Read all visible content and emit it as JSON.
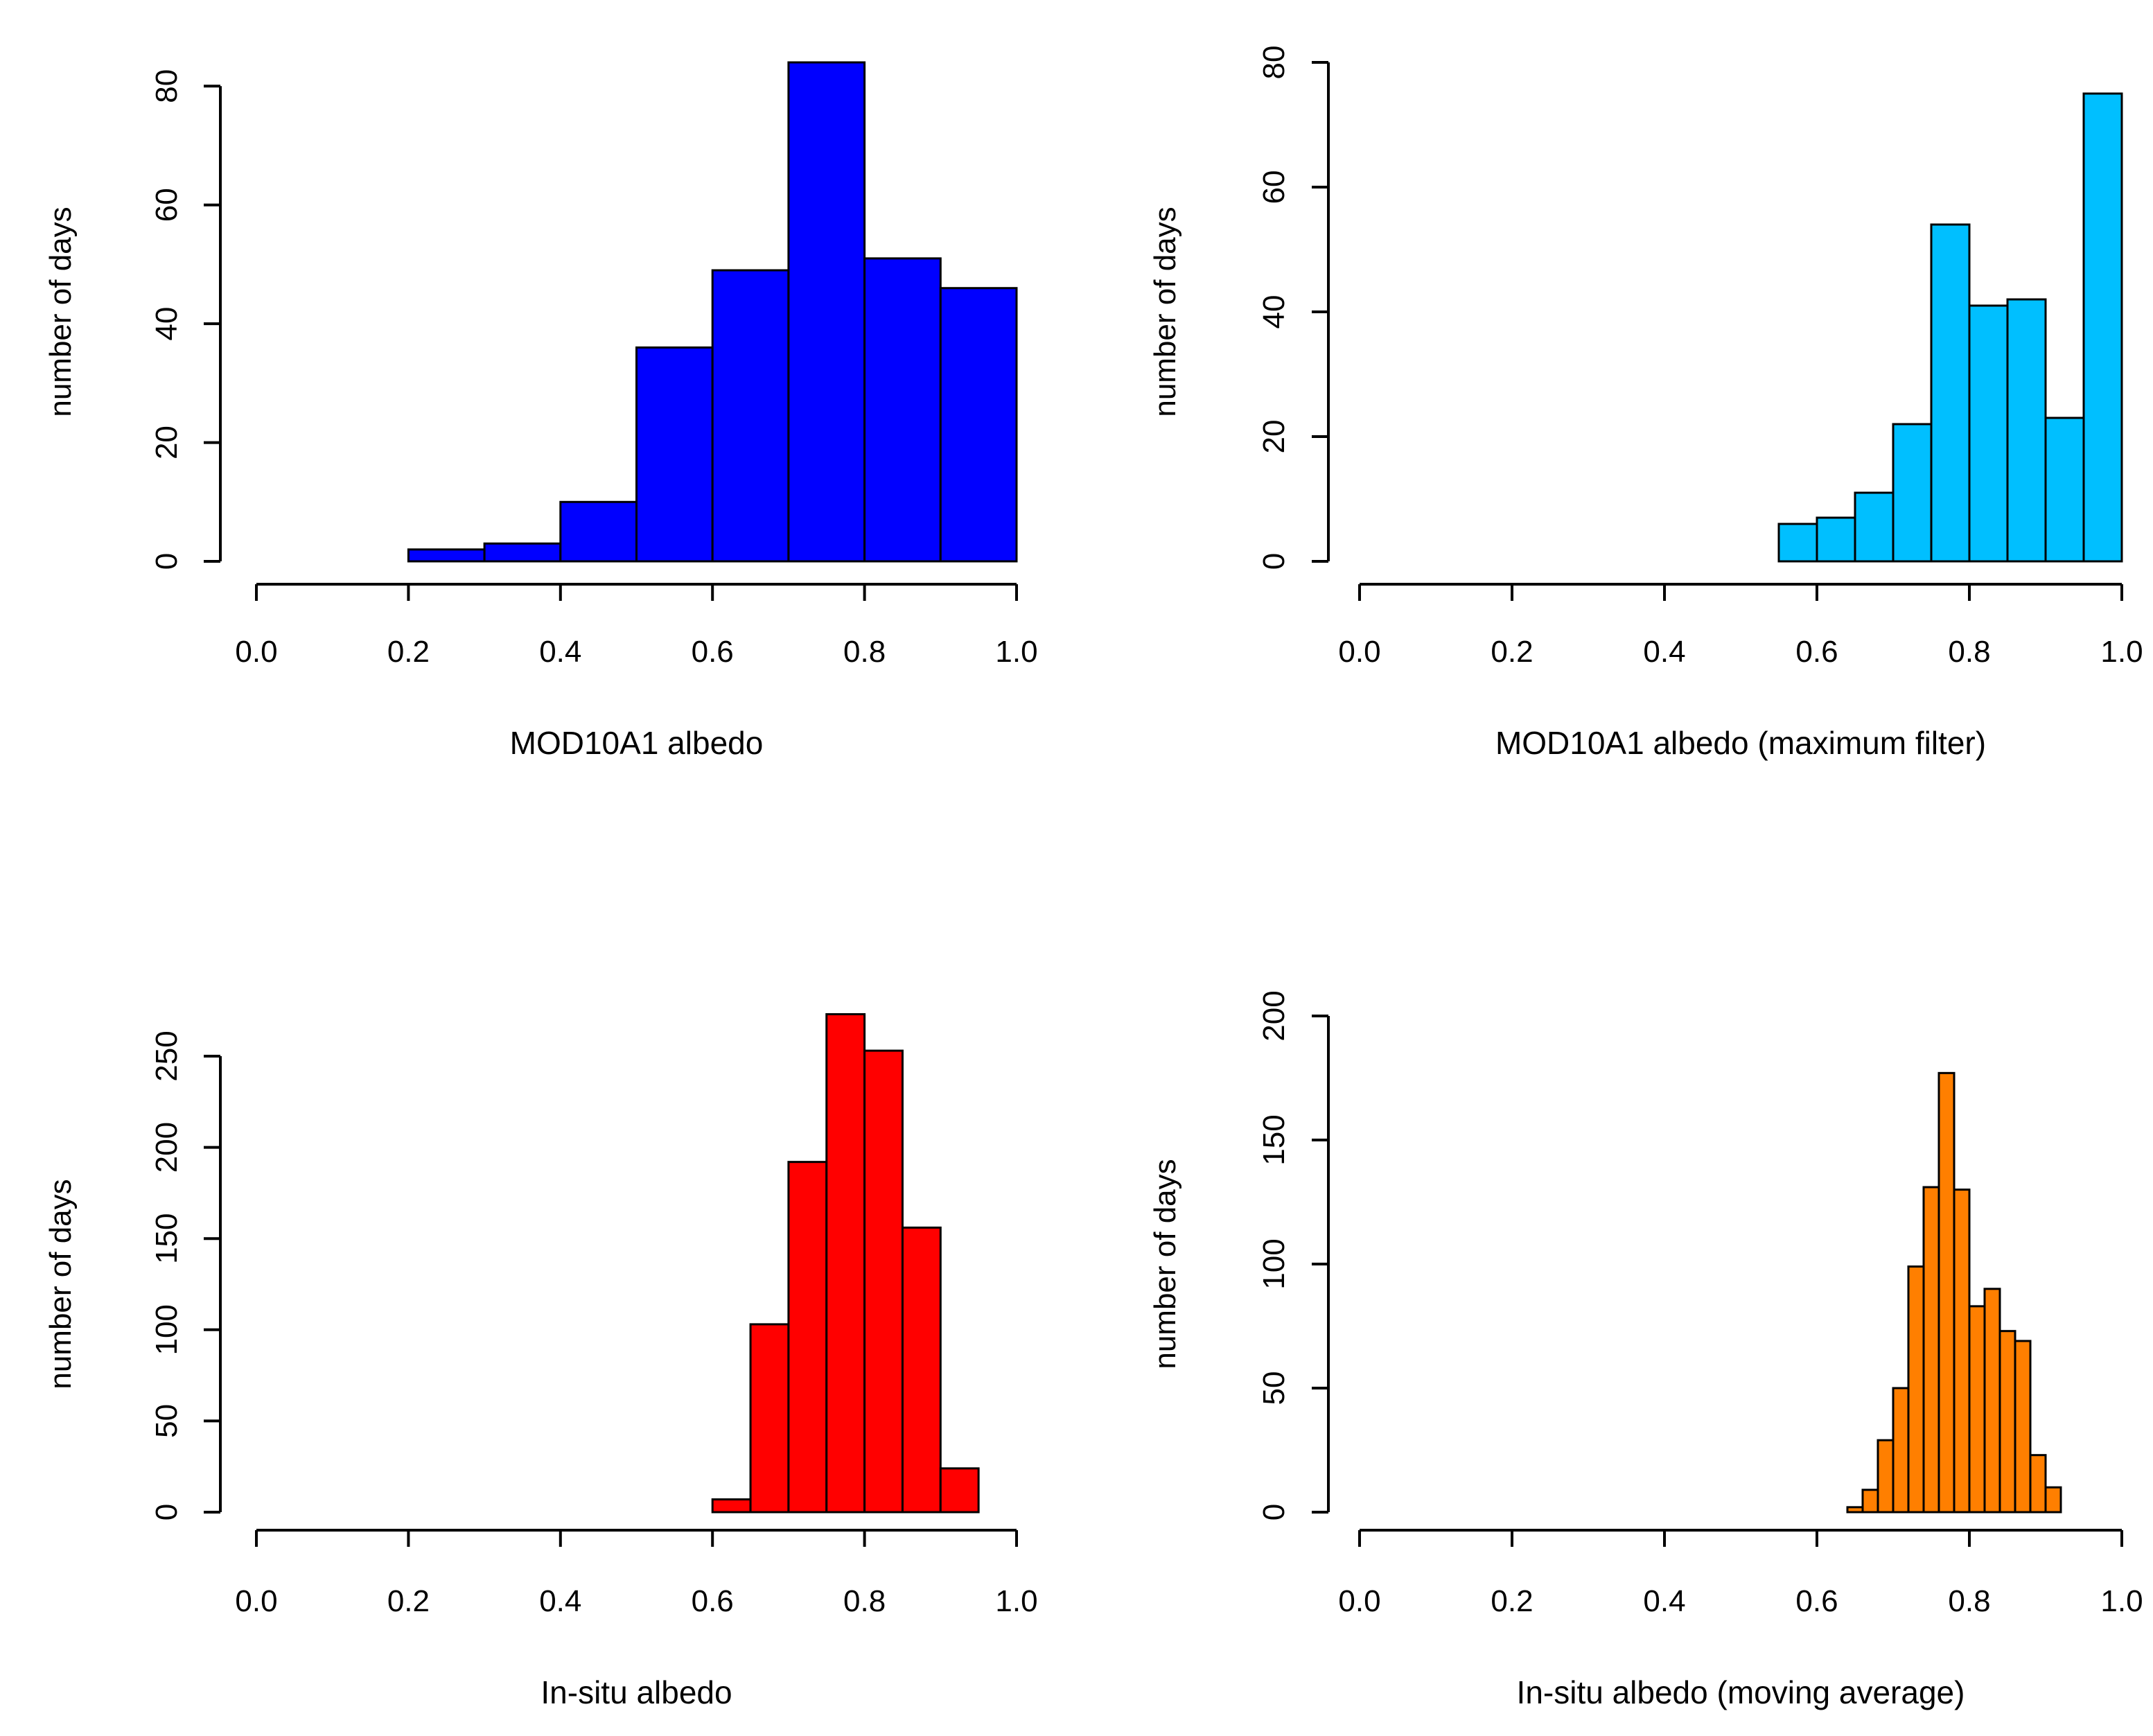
{
  "chart_data": [
    {
      "type": "bar",
      "title": "",
      "xlabel": "MOD10A1 albedo",
      "ylabel": "number of days",
      "fill_color": "#0000FF",
      "xlim": [
        0,
        1
      ],
      "ylim": [
        0,
        84
      ],
      "x_ticks": [
        "0.0",
        "0.2",
        "0.4",
        "0.6",
        "0.8",
        "1.0"
      ],
      "y_ticks": [
        "0",
        "20",
        "40",
        "60",
        "80"
      ],
      "bins": [
        {
          "x0": 0.2,
          "x1": 0.3,
          "count": 2
        },
        {
          "x0": 0.3,
          "x1": 0.4,
          "count": 3
        },
        {
          "x0": 0.4,
          "x1": 0.5,
          "count": 10
        },
        {
          "x0": 0.5,
          "x1": 0.6,
          "count": 36
        },
        {
          "x0": 0.6,
          "x1": 0.7,
          "count": 49
        },
        {
          "x0": 0.7,
          "x1": 0.8,
          "count": 84
        },
        {
          "x0": 0.8,
          "x1": 0.9,
          "count": 51
        },
        {
          "x0": 0.9,
          "x1": 1.0,
          "count": 46
        }
      ]
    },
    {
      "type": "bar",
      "title": "",
      "xlabel": "MOD10A1 albedo (maximum filter)",
      "ylabel": "number of days",
      "fill_color": "#00BFFF",
      "xlim": [
        0,
        1
      ],
      "ylim": [
        0,
        80
      ],
      "x_ticks": [
        "0.0",
        "0.2",
        "0.4",
        "0.6",
        "0.8",
        "1.0"
      ],
      "y_ticks": [
        "0",
        "20",
        "40",
        "60",
        "80"
      ],
      "bins": [
        {
          "x0": 0.55,
          "x1": 0.6,
          "count": 6
        },
        {
          "x0": 0.6,
          "x1": 0.65,
          "count": 7
        },
        {
          "x0": 0.65,
          "x1": 0.7,
          "count": 11
        },
        {
          "x0": 0.7,
          "x1": 0.75,
          "count": 22
        },
        {
          "x0": 0.75,
          "x1": 0.8,
          "count": 54
        },
        {
          "x0": 0.8,
          "x1": 0.85,
          "count": 41
        },
        {
          "x0": 0.85,
          "x1": 0.9,
          "count": 42
        },
        {
          "x0": 0.9,
          "x1": 0.95,
          "count": 23
        },
        {
          "x0": 0.95,
          "x1": 1.0,
          "count": 75
        }
      ]
    },
    {
      "type": "bar",
      "title": "",
      "xlabel": "In-situ albedo",
      "ylabel": "number of days",
      "fill_color": "#FF0000",
      "xlim": [
        0,
        1
      ],
      "ylim": [
        0,
        250
      ],
      "x_ticks": [
        "0.0",
        "0.2",
        "0.4",
        "0.6",
        "0.8",
        "1.0"
      ],
      "y_ticks": [
        "0",
        "50",
        "100",
        "150",
        "200",
        "250"
      ],
      "bins": [
        {
          "x0": 0.6,
          "x1": 0.65,
          "count": 7
        },
        {
          "x0": 0.65,
          "x1": 0.7,
          "count": 103
        },
        {
          "x0": 0.7,
          "x1": 0.75,
          "count": 192
        },
        {
          "x0": 0.75,
          "x1": 0.8,
          "count": 273
        },
        {
          "x0": 0.8,
          "x1": 0.85,
          "count": 253
        },
        {
          "x0": 0.85,
          "x1": 0.9,
          "count": 156
        },
        {
          "x0": 0.9,
          "x1": 0.95,
          "count": 24
        }
      ]
    },
    {
      "type": "bar",
      "title": "",
      "xlabel": "In-situ albedo (moving average)",
      "ylabel": "number of days",
      "fill_color": "#FF7F00",
      "xlim": [
        0,
        1
      ],
      "ylim": [
        0,
        200
      ],
      "x_ticks": [
        "0.0",
        "0.2",
        "0.4",
        "0.6",
        "0.8",
        "1.0"
      ],
      "y_ticks": [
        "0",
        "50",
        "100",
        "150",
        "200"
      ],
      "bins": [
        {
          "x0": 0.64,
          "x1": 0.66,
          "count": 2
        },
        {
          "x0": 0.66,
          "x1": 0.68,
          "count": 9
        },
        {
          "x0": 0.68,
          "x1": 0.7,
          "count": 29
        },
        {
          "x0": 0.7,
          "x1": 0.72,
          "count": 50
        },
        {
          "x0": 0.72,
          "x1": 0.74,
          "count": 99
        },
        {
          "x0": 0.74,
          "x1": 0.76,
          "count": 131
        },
        {
          "x0": 0.76,
          "x1": 0.78,
          "count": 177
        },
        {
          "x0": 0.78,
          "x1": 0.8,
          "count": 130
        },
        {
          "x0": 0.8,
          "x1": 0.82,
          "count": 83
        },
        {
          "x0": 0.82,
          "x1": 0.84,
          "count": 90
        },
        {
          "x0": 0.84,
          "x1": 0.86,
          "count": 73
        },
        {
          "x0": 0.86,
          "x1": 0.88,
          "count": 69
        },
        {
          "x0": 0.88,
          "x1": 0.9,
          "count": 23
        },
        {
          "x0": 0.9,
          "x1": 0.92,
          "count": 10
        }
      ]
    }
  ]
}
